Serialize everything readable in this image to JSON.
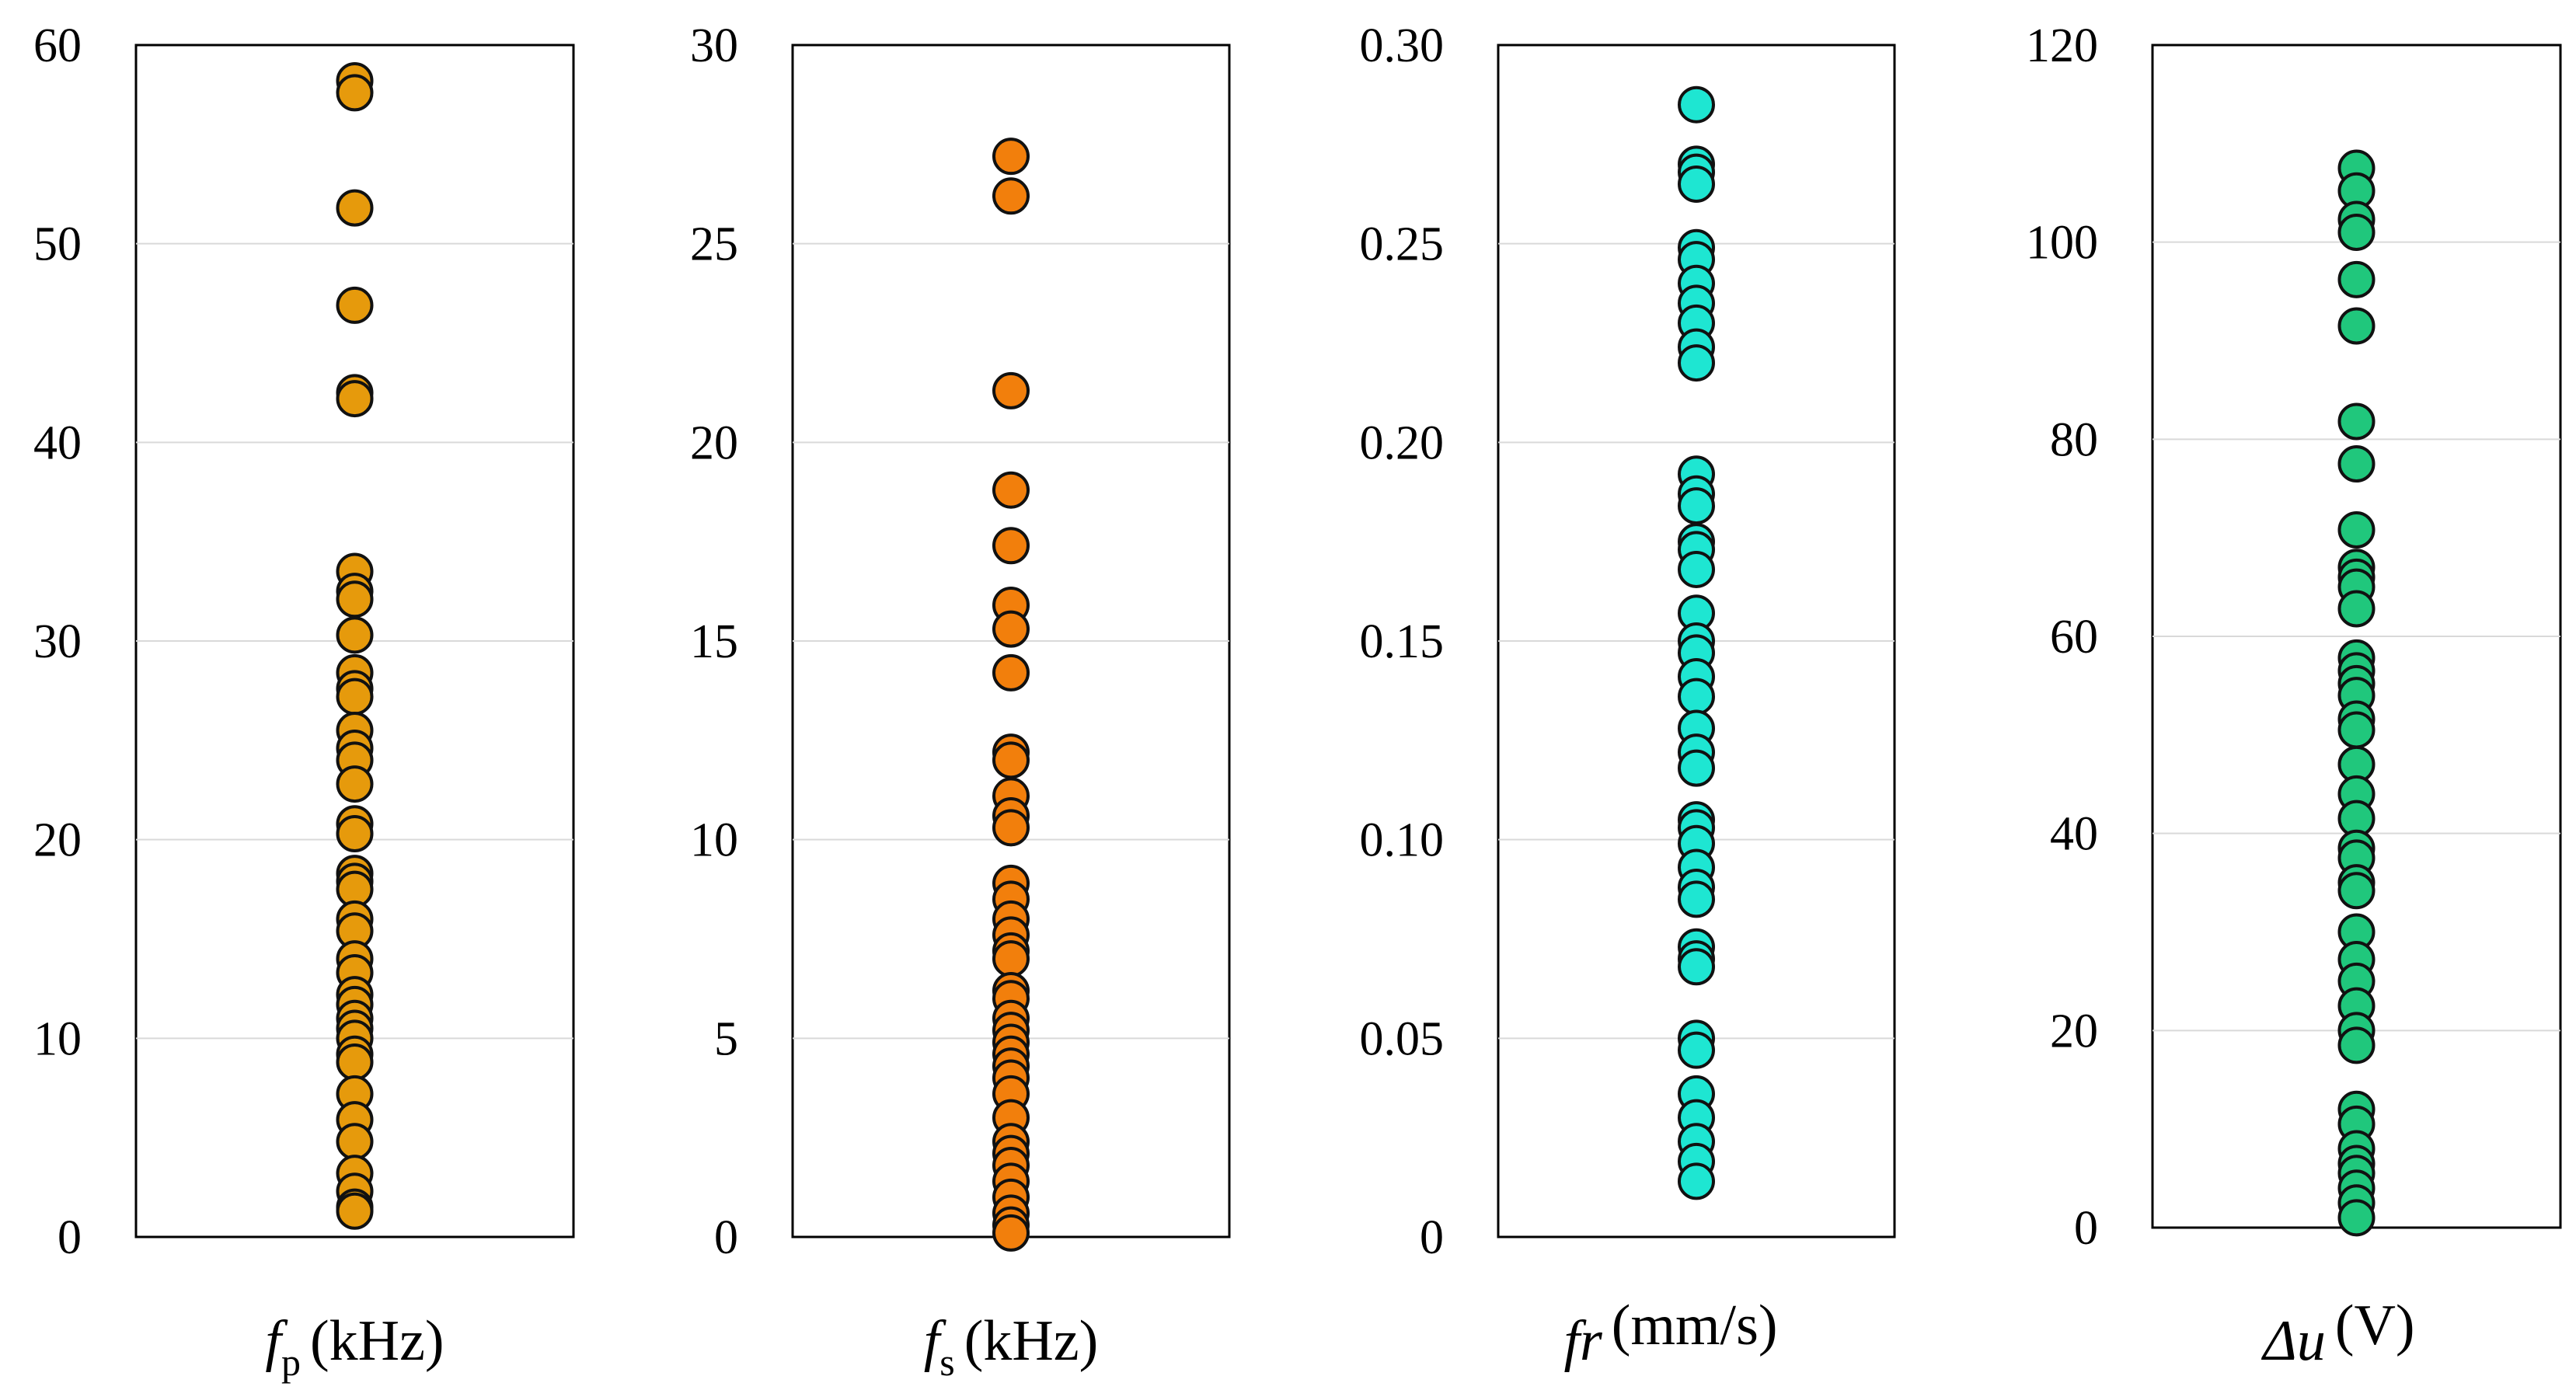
{
  "chart_data": [
    {
      "type": "scatter",
      "name": "fp",
      "title": "",
      "xlabel": {
        "symbol": "f",
        "sub": "p",
        "unit": "(kHz)"
      },
      "ylabel": "",
      "ylim": [
        0,
        60
      ],
      "ticks": [
        0,
        10,
        20,
        30,
        40,
        50,
        60
      ],
      "tick_labels": [
        "0",
        "10",
        "20",
        "30",
        "40",
        "50",
        "60"
      ],
      "color": "#E69A0C",
      "values": [
        58.2,
        57.6,
        51.8,
        46.9,
        42.5,
        42.2,
        33.5,
        32.5,
        32.1,
        30.3,
        28.4,
        27.6,
        27.2,
        25.5,
        24.6,
        24.0,
        22.8,
        20.8,
        20.3,
        18.3,
        17.9,
        17.5,
        16.0,
        15.4,
        14.0,
        13.3,
        12.2,
        11.7,
        11.0,
        10.5,
        10.0,
        9.2,
        8.8,
        7.2,
        5.9,
        4.8,
        3.2,
        2.3,
        1.5,
        1.3
      ]
    },
    {
      "type": "scatter",
      "name": "fs",
      "title": "",
      "xlabel": {
        "symbol": "f",
        "sub": "s",
        "unit": "(kHz)"
      },
      "ylabel": "",
      "ylim": [
        0,
        30
      ],
      "ticks": [
        0,
        5,
        10,
        15,
        20,
        25,
        30
      ],
      "tick_labels": [
        "0",
        "5",
        "10",
        "15",
        "20",
        "25",
        "30"
      ],
      "color": "#F27F0C",
      "values": [
        27.2,
        26.2,
        21.3,
        18.8,
        17.4,
        15.9,
        15.3,
        14.2,
        12.2,
        12.0,
        11.1,
        10.6,
        10.3,
        8.9,
        8.5,
        8.0,
        7.6,
        7.2,
        7.0,
        6.2,
        6.0,
        5.5,
        5.2,
        4.9,
        4.6,
        4.3,
        4.0,
        3.6,
        3.0,
        2.4,
        2.1,
        1.8,
        1.4,
        1.0,
        0.6,
        0.3,
        0.1
      ]
    },
    {
      "type": "scatter",
      "name": "fr",
      "title": "",
      "xlabel": {
        "symbol": "fr",
        "sub": "",
        "unit": "(mm/s)"
      },
      "ylabel": "",
      "ylim": [
        0,
        0.3
      ],
      "ticks": [
        0,
        0.05,
        0.1,
        0.15,
        0.2,
        0.25,
        0.3
      ],
      "tick_labels": [
        "0",
        "0.05",
        "0.10",
        "0.15",
        "0.20",
        "0.25",
        "0.30"
      ],
      "color": "#1EE6D2",
      "values": [
        0.285,
        0.27,
        0.268,
        0.265,
        0.249,
        0.246,
        0.24,
        0.235,
        0.23,
        0.224,
        0.22,
        0.192,
        0.187,
        0.184,
        0.175,
        0.173,
        0.168,
        0.157,
        0.15,
        0.147,
        0.141,
        0.136,
        0.128,
        0.122,
        0.118,
        0.105,
        0.103,
        0.099,
        0.093,
        0.088,
        0.085,
        0.073,
        0.07,
        0.068,
        0.05,
        0.047,
        0.036,
        0.03,
        0.024,
        0.019,
        0.014
      ]
    },
    {
      "type": "scatter",
      "name": "du",
      "title": "",
      "xlabel": {
        "symbol": "Δu",
        "sub": "",
        "unit": "(V)"
      },
      "ylabel": "",
      "ylim": [
        0,
        120
      ],
      "ticks": [
        0,
        20,
        40,
        60,
        80,
        100,
        120
      ],
      "tick_labels": [
        "0",
        "20",
        "40",
        "60",
        "80",
        "100",
        "120"
      ],
      "color": "#20C77C",
      "values": [
        107.5,
        105.2,
        102.3,
        101.0,
        96.2,
        91.5,
        81.8,
        77.5,
        70.8,
        67.0,
        66.0,
        65.0,
        62.8,
        57.8,
        56.5,
        55.2,
        54.0,
        51.6,
        50.5,
        47.0,
        44.0,
        41.5,
        38.5,
        37.5,
        35.0,
        34.2,
        30.0,
        27.2,
        25.0,
        22.5,
        20.0,
        18.5,
        12.0,
        10.5,
        8.0,
        6.5,
        5.5,
        4.0,
        2.5,
        1.0
      ]
    }
  ]
}
